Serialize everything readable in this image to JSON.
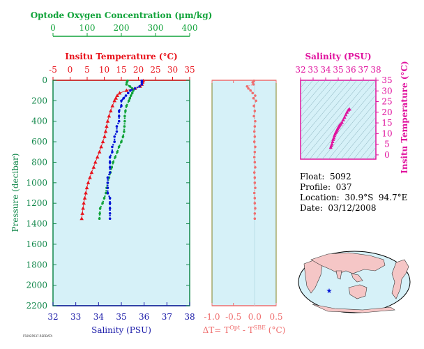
{
  "info": {
    "float_label": "Float:  5092",
    "profile_label": "Profile:  037",
    "location_label": "Location:  30.9°S  94.7°E",
    "date_label": "Date:  03/12/2008"
  },
  "tiny_text": "F5092P037.RSRDATA",
  "colors": {
    "panel_bg": "#d6f1f8",
    "temperature": "#e8121b",
    "oxygen": "#11a33a",
    "salinity": "#0011d6",
    "delta": "#ef6e6e",
    "ts": "#e0139e",
    "pressure_axis": "#11874a",
    "salinity_axis": "#1a1aa8"
  },
  "chart_data": [
    {
      "type": "scatter",
      "title": "",
      "ylabel": "Pressure (decibar)",
      "ylim": [
        2200,
        0
      ],
      "yticks": [
        0,
        200,
        400,
        600,
        800,
        1000,
        1200,
        1400,
        1600,
        1800,
        2000,
        2200
      ],
      "axes": {
        "oxygen": {
          "label": "Optode Oxygen Concentration (μm/kg)",
          "lim": [
            0,
            400
          ],
          "ticks": [
            0,
            100,
            200,
            300,
            400
          ]
        },
        "temperature": {
          "label": "Insitu Temperature (°C)",
          "lim": [
            -5,
            35
          ],
          "ticks": [
            -5,
            0,
            5,
            10,
            15,
            20,
            25,
            30,
            35
          ]
        },
        "salinity": {
          "label": "Salinity (PSU)",
          "lim": [
            32,
            38
          ],
          "ticks": [
            32,
            33,
            34,
            35,
            36,
            37,
            38
          ]
        }
      },
      "pressure": [
        5,
        20,
        40,
        60,
        80,
        100,
        125,
        150,
        175,
        200,
        250,
        300,
        350,
        400,
        450,
        500,
        550,
        600,
        650,
        700,
        750,
        800,
        850,
        900,
        950,
        1000,
        1050,
        1100,
        1150,
        1200,
        1250,
        1300,
        1350
      ],
      "series": [
        {
          "name": "temperature",
          "values": [
            21.4,
            21.2,
            21.0,
            20.5,
            19.0,
            16.5,
            14.5,
            13.8,
            13.4,
            13.0,
            12.4,
            11.9,
            11.4,
            11.0,
            10.7,
            10.4,
            10.1,
            9.6,
            9.1,
            8.6,
            8.0,
            7.4,
            6.9,
            6.3,
            5.8,
            5.3,
            4.9,
            4.6,
            4.3,
            4.0,
            3.8,
            3.6,
            3.4
          ]
        },
        {
          "name": "oxygen",
          "values": [
            218,
            216,
            215,
            225,
            232,
            235,
            232,
            228,
            225,
            222,
            215,
            212,
            210,
            210,
            209,
            208,
            205,
            200,
            193,
            188,
            182,
            176,
            172,
            168,
            164,
            160,
            157,
            155,
            150,
            145,
            138,
            137,
            136
          ]
        },
        {
          "name": "salinity",
          "values": [
            35.9,
            35.9,
            35.9,
            35.8,
            35.6,
            35.4,
            35.3,
            35.2,
            35.1,
            35.0,
            35.0,
            34.9,
            34.9,
            34.9,
            34.8,
            34.8,
            34.7,
            34.7,
            34.6,
            34.6,
            34.5,
            34.5,
            34.5,
            34.5,
            34.4,
            34.4,
            34.4,
            34.4,
            34.5,
            34.5,
            34.5,
            34.5,
            34.5
          ]
        }
      ]
    },
    {
      "type": "scatter",
      "title": "",
      "xlabel": "ΔT= T^Opt - T^SBE (°C)",
      "xlabel_main": "ΔT= T",
      "xlabel_sup1": "Opt",
      "xlabel_mid": " - T",
      "xlabel_sup2": "SBE",
      "xlabel_tail": " (°C)",
      "xlim": [
        -1.0,
        0.5
      ],
      "xticks": [
        "-1.0",
        "-0.5",
        "0.0",
        "0.5"
      ],
      "ylim": [
        2200,
        0
      ],
      "pressure": [
        5,
        20,
        40,
        60,
        80,
        100,
        125,
        150,
        175,
        200,
        250,
        300,
        350,
        400,
        450,
        500,
        550,
        600,
        650,
        700,
        750,
        800,
        850,
        900,
        950,
        1000,
        1050,
        1100,
        1150,
        1200,
        1250,
        1300,
        1350
      ],
      "values": [
        -0.02,
        -0.05,
        -0.03,
        -0.18,
        -0.15,
        -0.1,
        -0.05,
        0.01,
        -0.03,
        0.03,
        -0.02,
        0.0,
        -0.02,
        0.01,
        0.0,
        -0.01,
        0.0,
        -0.01,
        0.01,
        0.0,
        -0.01,
        0.0,
        0.01,
        -0.01,
        0.0,
        0.0,
        0.01,
        -0.01,
        0.0,
        0.0,
        0.01,
        0.0,
        0.0
      ]
    },
    {
      "type": "scatter",
      "title": "",
      "xlabel": "Salinity (PSU)",
      "ylabel": "Insitu Temperature (°C)",
      "xlim": [
        32,
        38
      ],
      "ylim": [
        -2,
        35
      ],
      "xticks": [
        32,
        33,
        34,
        35,
        36,
        37,
        38
      ],
      "yticks": [
        0,
        5,
        10,
        15,
        20,
        25,
        30,
        35
      ],
      "salinity": [
        34.4,
        34.45,
        34.5,
        34.55,
        34.6,
        34.65,
        34.7,
        34.75,
        34.8,
        34.85,
        34.9,
        34.95,
        35.0,
        35.05,
        35.1,
        35.2,
        35.3,
        35.4,
        35.5,
        35.6,
        35.7,
        35.8,
        35.9
      ],
      "temperature": [
        3.5,
        4.3,
        5.1,
        6.2,
        7.2,
        8.0,
        9.0,
        9.8,
        10.5,
        11.0,
        11.6,
        12.2,
        12.8,
        13.3,
        13.8,
        14.4,
        15.2,
        16.4,
        17.6,
        18.8,
        20.0,
        21.0,
        21.4
      ]
    }
  ]
}
